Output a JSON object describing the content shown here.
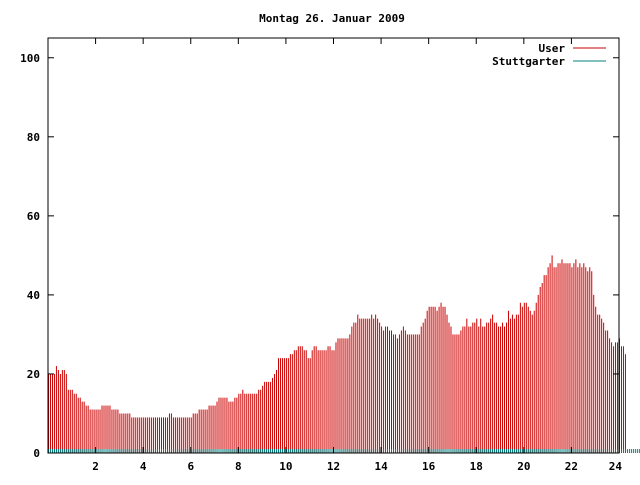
{
  "chart_data": {
    "type": "bar",
    "title": "Montag 26. Januar 2009",
    "xlabel": "",
    "ylabel": "",
    "xlim": [
      0,
      24
    ],
    "ylim": [
      0,
      105
    ],
    "grid": false,
    "legend_placement": "top-right",
    "x_ticks": [
      "2",
      "4",
      "6",
      "8",
      "10",
      "12",
      "14",
      "16",
      "18",
      "20",
      "22",
      "24"
    ],
    "y_ticks": [
      "0",
      "20",
      "40",
      "60",
      "80",
      "100"
    ],
    "colors": {
      "user": "#cc0000",
      "stuttgarter": "#008080",
      "axis": "#000000"
    },
    "interval_minutes": 5,
    "series": [
      {
        "name": "User",
        "color": "#cc0000",
        "values": [
          20,
          20,
          20,
          20,
          22,
          21,
          20,
          21,
          21,
          20,
          16,
          16,
          16,
          15,
          15,
          14,
          14,
          13,
          13,
          12,
          12,
          11,
          11,
          11,
          11,
          11,
          11,
          12,
          12,
          12,
          12,
          12,
          11,
          11,
          11,
          11,
          10,
          10,
          10,
          10,
          10,
          10,
          9,
          9,
          9,
          9,
          9,
          9,
          9,
          9,
          9,
          9,
          9,
          9,
          9,
          9,
          9,
          9,
          9,
          9,
          9,
          10,
          10,
          9,
          9,
          9,
          9,
          9,
          9,
          9,
          9,
          9,
          9,
          10,
          10,
          10,
          11,
          11,
          11,
          11,
          11,
          12,
          12,
          12,
          12,
          13,
          14,
          14,
          14,
          14,
          14,
          13,
          13,
          13,
          14,
          14,
          15,
          15,
          16,
          15,
          15,
          15,
          15,
          15,
          15,
          15,
          16,
          16,
          17,
          18,
          18,
          18,
          18,
          19,
          20,
          21,
          24,
          24,
          24,
          24,
          24,
          24,
          25,
          25,
          26,
          26,
          27,
          27,
          27,
          26,
          26,
          24,
          24,
          26,
          27,
          27,
          26,
          26,
          26,
          26,
          26,
          27,
          27,
          26,
          26,
          28,
          29,
          29,
          29,
          29,
          29,
          29,
          30,
          32,
          33,
          33,
          35,
          34,
          34,
          34,
          34,
          34,
          34,
          35,
          34,
          35,
          34,
          33,
          32,
          31,
          32,
          32,
          31,
          31,
          30,
          30,
          29,
          30,
          31,
          32,
          31,
          30,
          30,
          30,
          30,
          30,
          30,
          30,
          32,
          33,
          34,
          36,
          37,
          37,
          37,
          37,
          36,
          37,
          38,
          37,
          37,
          35,
          33,
          32,
          30,
          30,
          30,
          30,
          31,
          32,
          32,
          34,
          32,
          32,
          33,
          33,
          34,
          32,
          34,
          32,
          32,
          33,
          33,
          34,
          35,
          33,
          33,
          32,
          32,
          33,
          32,
          33,
          36,
          34,
          35,
          34,
          35,
          35,
          38,
          37,
          38,
          38,
          37,
          36,
          35,
          36,
          38,
          40,
          42,
          43,
          45,
          45,
          47,
          48,
          50,
          47,
          47,
          48,
          48,
          49,
          48,
          48,
          48,
          48,
          47,
          48,
          49,
          47,
          48,
          47,
          48,
          47,
          46,
          47,
          46,
          40,
          37,
          35,
          35,
          34,
          33,
          31,
          31,
          29,
          28,
          27,
          28,
          28,
          29,
          27,
          27,
          25
        ]
      },
      {
        "name": "Stuttgarter",
        "color": "#008080",
        "values": [
          1,
          1,
          1,
          1,
          1,
          1,
          1,
          1,
          1,
          1,
          1,
          1,
          1,
          1,
          1,
          1,
          1,
          1,
          1,
          1,
          1,
          1,
          1,
          1,
          1,
          1,
          1,
          1,
          1,
          1,
          1,
          1,
          1,
          1,
          1,
          1,
          1,
          1,
          1,
          1,
          1,
          1,
          1,
          1,
          1,
          1,
          1,
          1,
          1,
          1,
          1,
          1,
          1,
          1,
          1,
          1,
          1,
          1,
          1,
          1,
          1,
          1,
          1,
          1,
          1,
          1,
          1,
          1,
          1,
          1,
          1,
          1,
          1,
          1,
          1,
          1,
          1,
          1,
          1,
          1,
          1,
          1,
          1,
          1,
          1,
          1,
          1,
          1,
          1,
          1,
          1,
          1,
          1,
          1,
          1,
          1,
          1,
          1,
          1,
          1,
          1,
          1,
          1,
          1,
          1,
          1,
          1,
          1,
          1,
          1,
          1,
          1,
          1,
          1,
          1,
          1,
          1,
          1,
          1,
          1,
          1,
          1,
          1,
          1,
          1,
          1,
          1,
          1,
          1,
          1,
          1,
          1,
          1,
          1,
          1,
          1,
          1,
          1,
          1,
          1,
          1,
          1,
          1,
          1,
          1,
          1,
          1,
          1,
          1,
          1,
          1,
          1,
          1,
          1,
          1,
          1,
          1,
          1,
          1,
          1,
          1,
          1,
          1,
          1,
          1,
          1,
          1,
          1,
          1,
          1,
          1,
          1,
          1,
          1,
          1,
          1,
          1,
          1,
          1,
          1,
          1,
          1,
          1,
          1,
          1,
          1,
          1,
          1,
          1,
          1,
          1,
          1,
          1,
          1,
          1,
          1,
          1,
          1,
          1,
          1,
          1,
          1,
          1,
          1,
          1,
          1,
          1,
          1,
          1,
          1,
          1,
          1,
          1,
          1,
          1,
          1,
          1,
          1,
          1,
          1,
          1,
          1,
          1,
          1,
          1,
          1,
          1,
          1,
          1,
          1,
          1,
          1,
          1,
          1,
          1,
          1,
          1,
          1,
          1,
          1,
          1,
          1,
          1,
          1,
          1,
          1,
          1,
          1,
          1,
          1,
          1,
          1,
          1,
          1,
          1,
          1,
          1,
          1,
          1,
          1,
          1,
          1,
          1,
          1,
          1,
          1,
          1,
          1,
          1,
          1,
          1,
          1,
          1,
          1,
          1,
          1,
          1,
          1,
          1,
          1,
          1,
          1,
          1,
          1,
          1,
          1,
          1,
          1,
          1,
          1,
          1,
          1,
          1,
          1,
          1,
          1,
          1,
          1,
          1,
          1,
          1,
          1,
          1,
          1,
          1,
          1,
          1,
          1,
          1,
          1,
          1,
          1,
          1,
          1,
          1,
          1
        ]
      }
    ]
  }
}
